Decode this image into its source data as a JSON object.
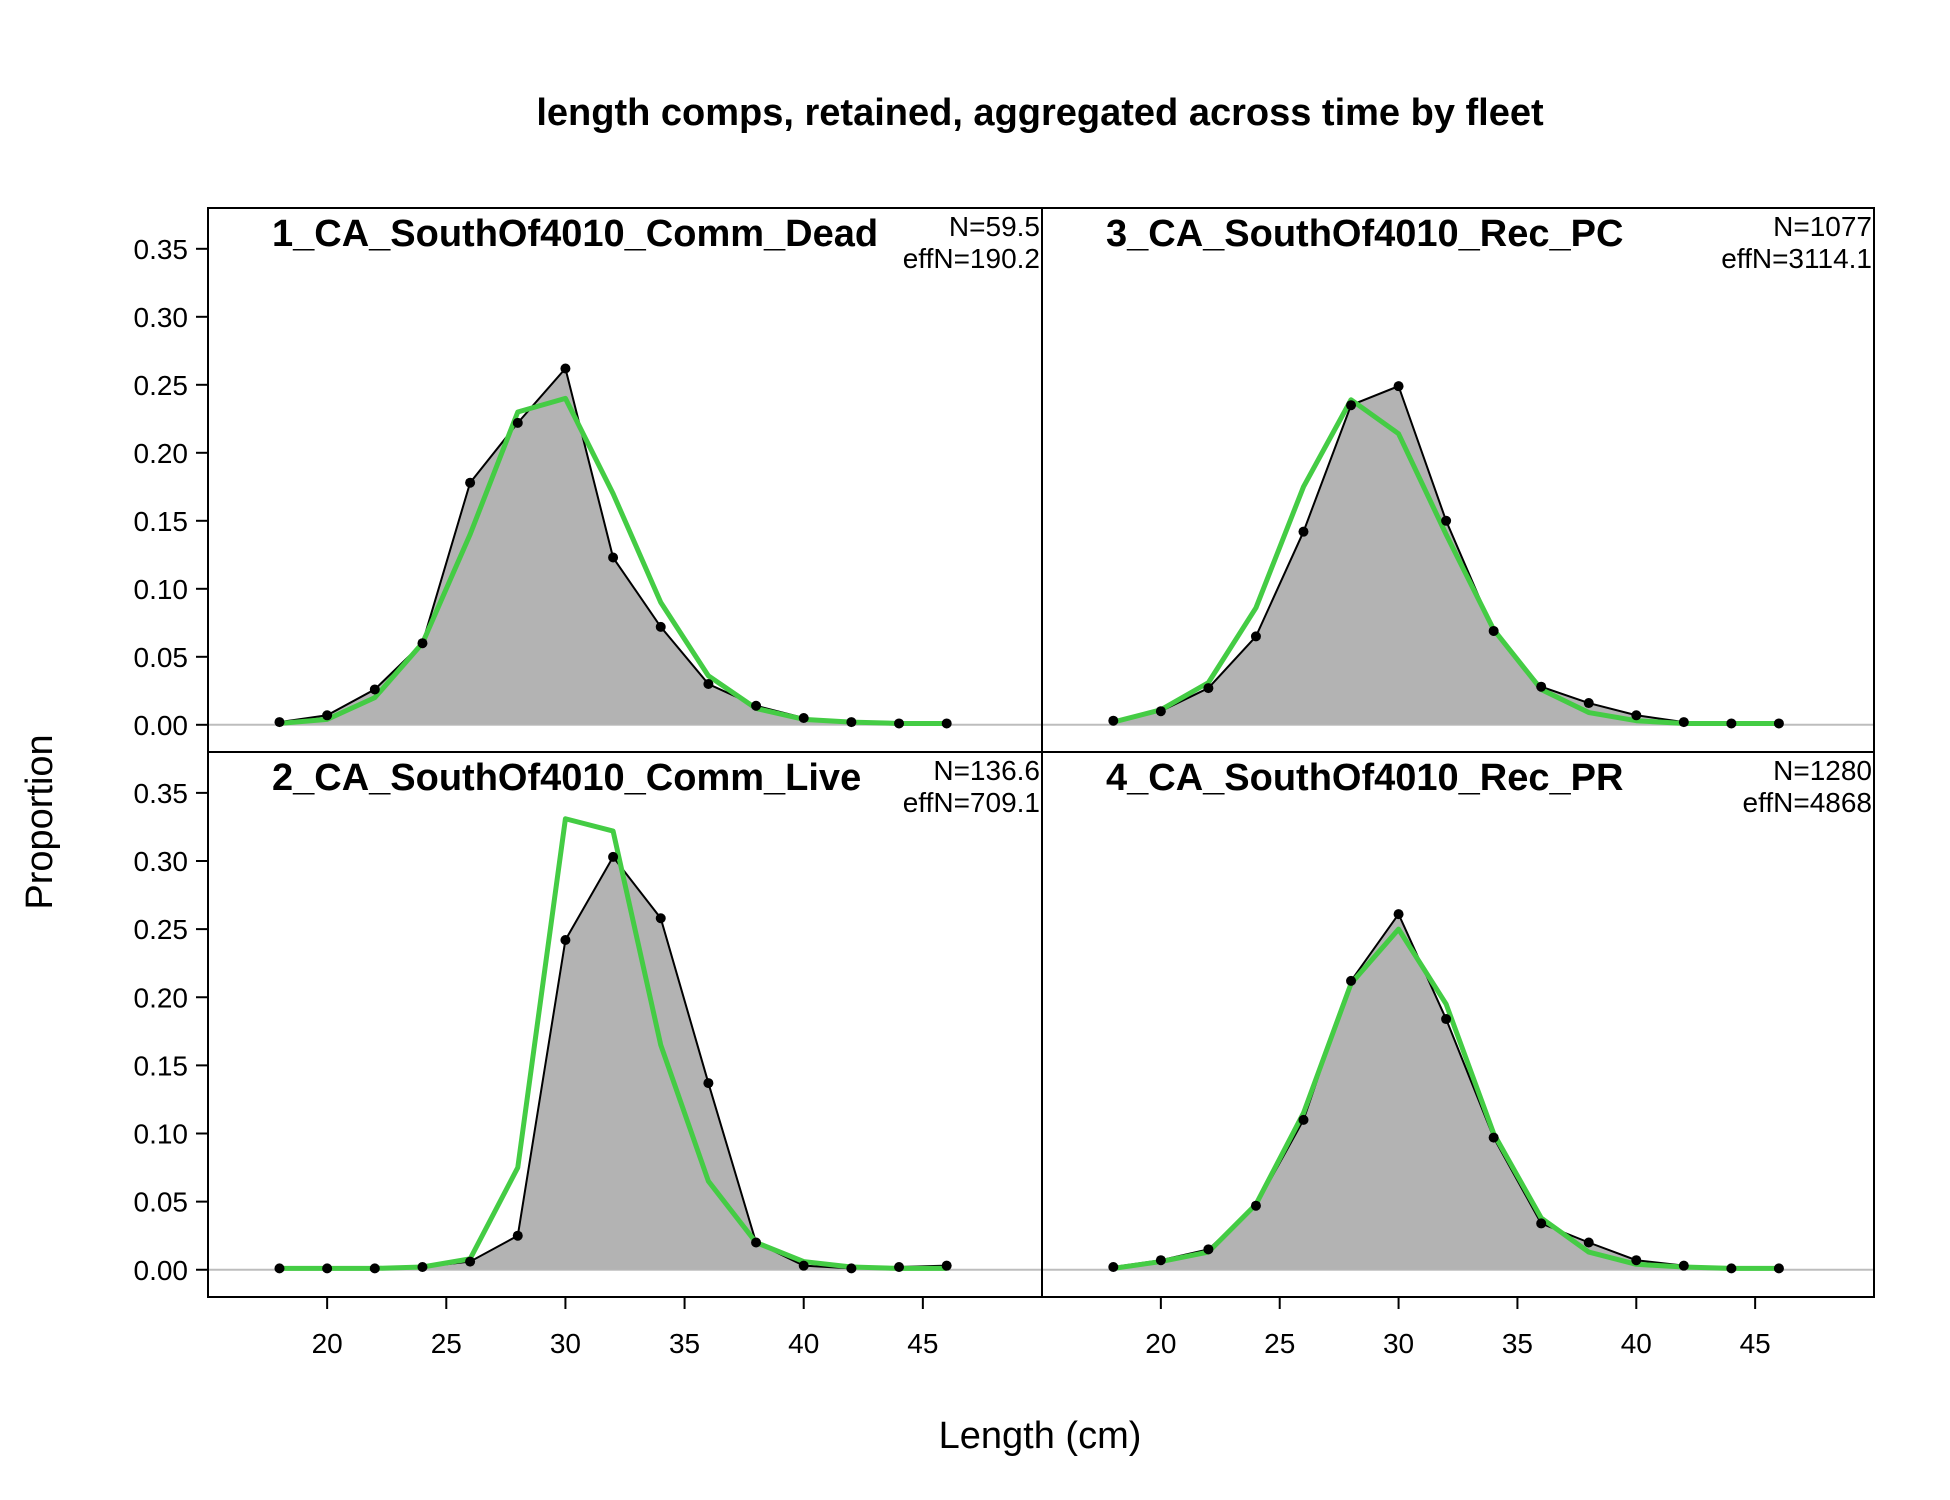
{
  "chart_data": {
    "type": "area",
    "title": "length comps, retained, aggregated across time by fleet",
    "xlabel": "Length (cm)",
    "ylabel": "Proportion",
    "xlim": [
      15,
      50
    ],
    "ylim": [
      -0.02,
      0.38
    ],
    "x_ticks": [
      20,
      25,
      30,
      35,
      40,
      45
    ],
    "x_tick_labels": [
      "20",
      "25",
      "30",
      "35",
      "40",
      "45"
    ],
    "y_ticks": [
      0.0,
      0.05,
      0.1,
      0.15,
      0.2,
      0.25,
      0.3,
      0.35
    ],
    "y_tick_labels": [
      "0.00",
      "0.05",
      "0.10",
      "0.15",
      "0.20",
      "0.25",
      "0.30",
      "0.35"
    ],
    "observed_color": "#b3b3b3",
    "expected_color": "#44cc44",
    "panels": [
      {
        "label": "1_CA_SouthOf4010_Comm_Dead",
        "n_text": "N=59.5",
        "effn_text": "effN=190.2",
        "x": [
          18,
          20,
          22,
          24,
          26,
          28,
          30,
          32,
          34,
          36,
          38,
          40,
          42,
          44,
          46
        ],
        "observed": [
          0.002,
          0.007,
          0.026,
          0.06,
          0.178,
          0.222,
          0.262,
          0.123,
          0.072,
          0.03,
          0.014,
          0.005,
          0.002,
          0.001,
          0.001
        ],
        "expected": [
          0.001,
          0.004,
          0.02,
          0.06,
          0.14,
          0.23,
          0.24,
          0.17,
          0.09,
          0.036,
          0.012,
          0.004,
          0.002,
          0.001,
          0.001
        ]
      },
      {
        "label": "3_CA_SouthOf4010_Rec_PC",
        "n_text": "N=1077",
        "effn_text": "effN=3114.1",
        "x": [
          18,
          20,
          22,
          24,
          26,
          28,
          30,
          32,
          34,
          36,
          38,
          40,
          42,
          44,
          46
        ],
        "observed": [
          0.003,
          0.01,
          0.027,
          0.065,
          0.142,
          0.235,
          0.249,
          0.15,
          0.069,
          0.028,
          0.016,
          0.007,
          0.002,
          0.001,
          0.001
        ],
        "expected": [
          0.002,
          0.011,
          0.031,
          0.086,
          0.175,
          0.239,
          0.214,
          0.14,
          0.07,
          0.026,
          0.009,
          0.003,
          0.001,
          0.001,
          0.001
        ]
      },
      {
        "label": "2_CA_SouthOf4010_Comm_Live",
        "n_text": "N=136.6",
        "effn_text": "effN=709.1",
        "x": [
          18,
          20,
          22,
          24,
          26,
          28,
          30,
          32,
          34,
          36,
          38,
          40,
          42,
          44,
          46
        ],
        "observed": [
          0.001,
          0.001,
          0.001,
          0.002,
          0.006,
          0.025,
          0.242,
          0.303,
          0.258,
          0.137,
          0.02,
          0.003,
          0.001,
          0.002,
          0.003
        ],
        "expected": [
          0.001,
          0.001,
          0.001,
          0.002,
          0.008,
          0.075,
          0.331,
          0.322,
          0.165,
          0.065,
          0.02,
          0.006,
          0.002,
          0.001,
          0.001
        ]
      },
      {
        "label": "4_CA_SouthOf4010_Rec_PR",
        "n_text": "N=1280",
        "effn_text": "effN=4868",
        "x": [
          18,
          20,
          22,
          24,
          26,
          28,
          30,
          32,
          34,
          36,
          38,
          40,
          42,
          44,
          46
        ],
        "observed": [
          0.002,
          0.007,
          0.015,
          0.047,
          0.11,
          0.212,
          0.261,
          0.184,
          0.097,
          0.034,
          0.02,
          0.007,
          0.003,
          0.001,
          0.001
        ],
        "expected": [
          0.001,
          0.006,
          0.013,
          0.048,
          0.115,
          0.21,
          0.25,
          0.195,
          0.1,
          0.038,
          0.013,
          0.004,
          0.002,
          0.001,
          0.001
        ]
      }
    ]
  }
}
